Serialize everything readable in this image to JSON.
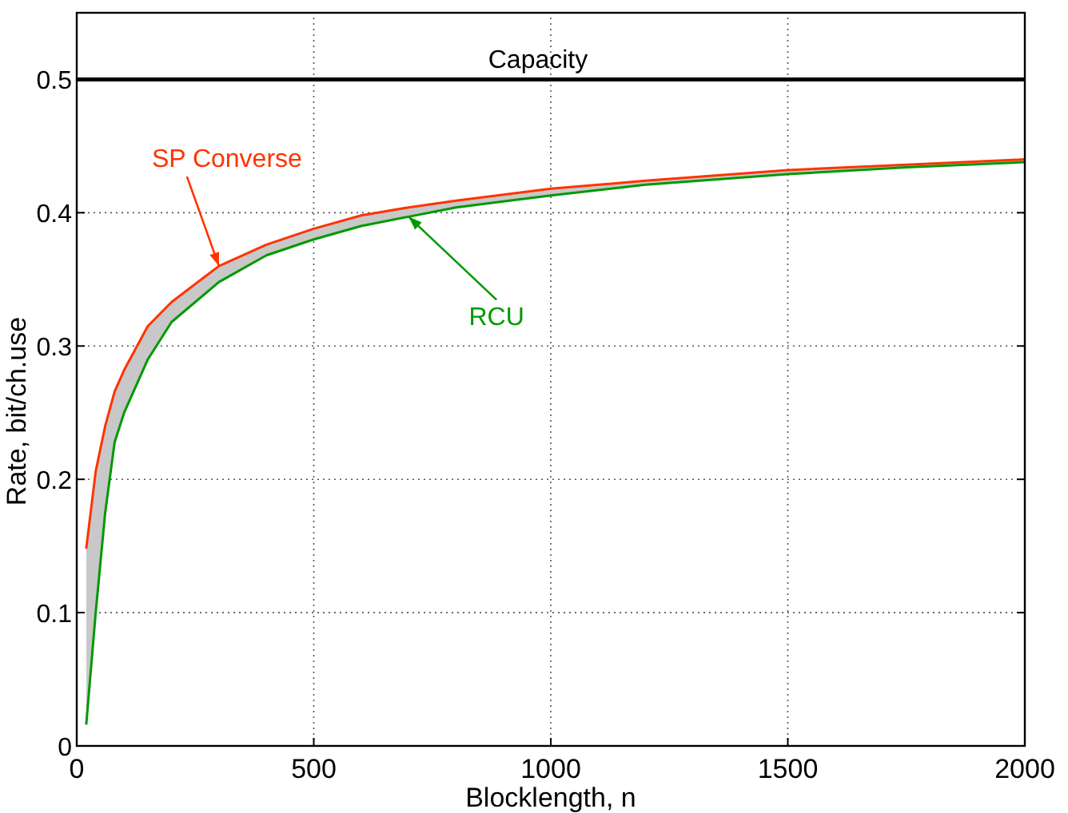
{
  "chart_data": {
    "type": "line",
    "xlabel": "Blocklength, n",
    "ylabel": "Rate, bit/ch.use",
    "x": [
      20,
      40,
      60,
      80,
      100,
      150,
      200,
      300,
      400,
      500,
      600,
      700,
      800,
      1000,
      1200,
      1500,
      1750,
      2000
    ],
    "series": [
      {
        "name": "SP Converse",
        "color": "#ff3300",
        "values": [
          0.148,
          0.206,
          0.24,
          0.266,
          0.282,
          0.315,
          0.333,
          0.36,
          0.376,
          0.388,
          0.398,
          0.404,
          0.409,
          0.418,
          0.424,
          0.432,
          0.436,
          0.44
        ]
      },
      {
        "name": "RCU",
        "color": "#009900",
        "values": [
          0.016,
          0.1,
          0.175,
          0.228,
          0.25,
          0.29,
          0.318,
          0.348,
          0.368,
          0.38,
          0.39,
          0.397,
          0.404,
          0.413,
          0.421,
          0.429,
          0.434,
          0.438
        ],
        "lower": [
          0.016,
          0.1,
          0.175,
          0.228,
          0.25,
          0.29,
          0.318,
          0.348,
          0.368,
          0.38,
          0.39,
          0.397,
          0.404,
          0.413,
          0.421,
          0.429,
          0.434,
          0.438
        ],
        "upper": [
          0.148,
          0.206,
          0.24,
          0.266,
          0.282,
          0.315,
          0.333,
          0.36,
          0.376,
          0.388,
          0.398,
          0.404,
          0.409,
          0.418,
          0.424,
          0.432,
          0.436,
          0.44
        ]
      }
    ],
    "ref_lines": [
      {
        "axis": "y",
        "value": 0.5,
        "label": "Capacity",
        "color": "#000000"
      }
    ],
    "xlim": [
      0,
      2000
    ],
    "xticks": [
      0,
      500,
      1000,
      1500,
      2000
    ],
    "ylim": [
      0,
      0.55
    ],
    "yticks": [
      0,
      0.1,
      0.2,
      0.3,
      0.4,
      0.5
    ],
    "grid": true,
    "marker": "none",
    "line_style": "solid"
  }
}
